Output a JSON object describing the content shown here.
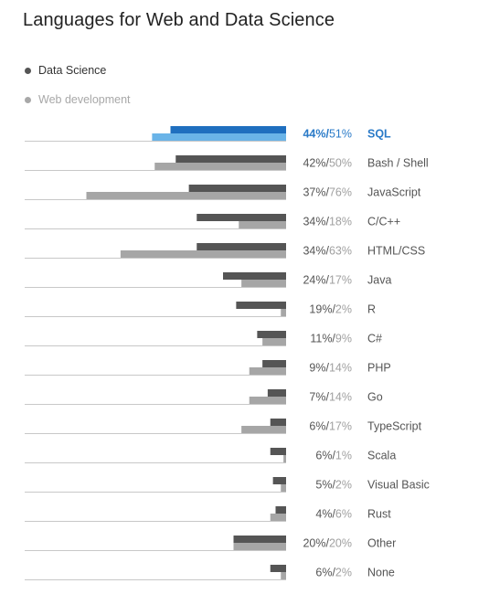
{
  "title": "Languages for Web and Data Science",
  "legend": {
    "data_science": "Data Science",
    "web_development": "Web development"
  },
  "colors": {
    "data_science": "#555555",
    "web_development": "#a6a6a6",
    "highlight_data_science": "#1f6fbf",
    "highlight_web_development": "#6ab4e8",
    "baseline": "#c8c8c8",
    "label": "#555555",
    "web_pct_text": "#a0a0a0",
    "highlight_text": "#2b7bc8"
  },
  "chart_data": {
    "type": "bar",
    "title": "Languages for Web and Data Science",
    "orientation": "horizontal",
    "highlighted_category": "SQL",
    "categories": [
      "SQL",
      "Bash / Shell",
      "JavaScript",
      "C/C++",
      "HTML/CSS",
      "Java",
      "R",
      "C#",
      "PHP",
      "Go",
      "TypeScript",
      "Scala",
      "Visual Basic",
      "Rust",
      "Other",
      "None"
    ],
    "series": [
      {
        "name": "Data Science",
        "values": [
          44,
          42,
          37,
          34,
          34,
          24,
          19,
          11,
          9,
          7,
          6,
          6,
          5,
          4,
          20,
          6
        ]
      },
      {
        "name": "Web development",
        "values": [
          51,
          50,
          76,
          18,
          63,
          17,
          2,
          9,
          14,
          14,
          17,
          1,
          2,
          6,
          20,
          2
        ]
      }
    ],
    "unit": "%",
    "xlim": [
      0,
      100
    ],
    "legend_position": "top-left",
    "grid": false
  }
}
